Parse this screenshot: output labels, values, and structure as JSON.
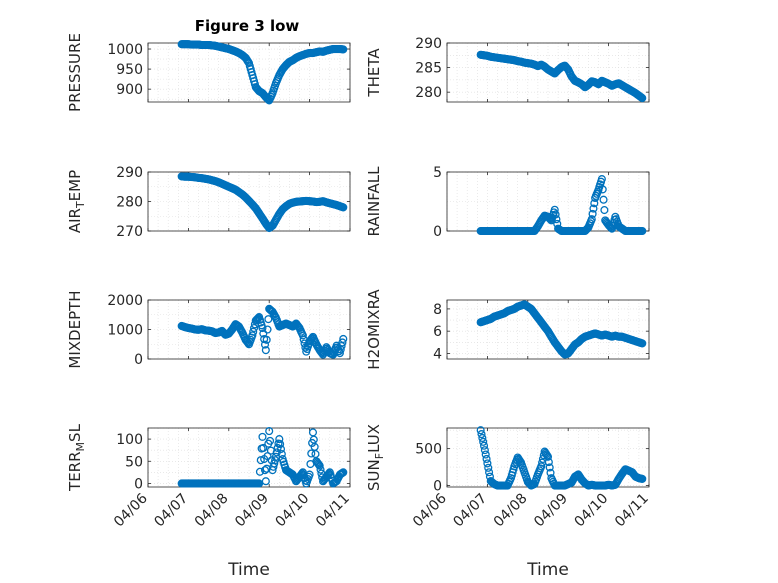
{
  "figure_title": "Figure 3 low",
  "colors": {
    "marker": "#0072BD",
    "axis": "#262626",
    "grid": "#dcdcdc",
    "frame": "#ffffff"
  },
  "chart_data": [
    {
      "type": "scatter",
      "ylabel": "PRESSURE",
      "ylabel_sub": null,
      "ylim": [
        868,
        1015
      ],
      "yticks": [
        900,
        950,
        1000
      ],
      "xlim": [
        "04/06 20:00",
        "04/10 20:00"
      ],
      "xticks": [],
      "x": [
        "04/06 20:00",
        "04/06 22:00",
        "04/07 00:00",
        "04/07 02:00",
        "04/07 04:00",
        "04/07 06:00",
        "04/07 08:00",
        "04/07 10:00",
        "04/07 12:00",
        "04/07 14:00",
        "04/07 16:00",
        "04/07 18:00",
        "04/07 20:00",
        "04/07 22:00",
        "04/08 00:00",
        "04/08 02:00",
        "04/08 04:00",
        "04/08 06:00",
        "04/08 08:00",
        "04/08 10:00",
        "04/08 12:00",
        "04/08 14:00",
        "04/08 16:00",
        "04/08 18:00",
        "04/08 20:00",
        "04/08 22:00",
        "04/09 00:00",
        "04/09 02:00",
        "04/09 04:00",
        "04/09 06:00",
        "04/09 08:00",
        "04/09 10:00",
        "04/09 12:00",
        "04/09 14:00",
        "04/09 16:00",
        "04/09 18:00",
        "04/09 20:00",
        "04/09 22:00",
        "04/10 00:00",
        "04/10 02:00",
        "04/10 04:00",
        "04/10 06:00",
        "04/10 08:00",
        "04/10 10:00",
        "04/10 12:00",
        "04/10 14:00",
        "04/10 16:00",
        "04/10 18:00",
        "04/10 20:00"
      ],
      "y": [
        1012,
        1012,
        1012,
        1011,
        1011,
        1011,
        1010,
        1010,
        1010,
        1009,
        1008,
        1006,
        1004,
        1002,
        1000,
        997,
        994,
        990,
        985,
        978,
        965,
        935,
        905,
        895,
        890,
        880,
        872,
        890,
        915,
        935,
        950,
        960,
        968,
        972,
        978,
        982,
        985,
        988,
        990,
        990,
        992,
        994,
        993,
        996,
        998,
        1000,
        1000,
        1000,
        999
      ]
    },
    {
      "type": "scatter",
      "ylabel": "THETA",
      "ylabel_sub": null,
      "ylim": [
        278,
        290
      ],
      "yticks": [
        280,
        285,
        290
      ],
      "xlim": [
        "04/06 20:00",
        "04/10 20:00"
      ],
      "xticks": [],
      "x": [
        "04/06 20:00",
        "04/06 22:00",
        "04/07 00:00",
        "04/07 02:00",
        "04/07 04:00",
        "04/07 06:00",
        "04/07 08:00",
        "04/07 10:00",
        "04/07 12:00",
        "04/07 14:00",
        "04/07 16:00",
        "04/07 18:00",
        "04/07 20:00",
        "04/07 22:00",
        "04/08 00:00",
        "04/08 02:00",
        "04/08 04:00",
        "04/08 06:00",
        "04/08 08:00",
        "04/08 10:00",
        "04/08 12:00",
        "04/08 14:00",
        "04/08 16:00",
        "04/08 18:00",
        "04/08 20:00",
        "04/08 22:00",
        "04/09 00:00",
        "04/09 02:00",
        "04/09 04:00",
        "04/09 06:00",
        "04/09 08:00",
        "04/09 10:00",
        "04/09 12:00",
        "04/09 14:00",
        "04/09 16:00",
        "04/09 18:00",
        "04/09 20:00",
        "04/09 22:00",
        "04/10 00:00",
        "04/10 02:00",
        "04/10 04:00",
        "04/10 06:00",
        "04/10 08:00",
        "04/10 10:00",
        "04/10 12:00",
        "04/10 14:00",
        "04/10 16:00",
        "04/10 18:00",
        "04/10 20:00"
      ],
      "y": [
        287.6,
        287.5,
        287.4,
        287.2,
        287.1,
        287.0,
        286.9,
        286.8,
        286.7,
        286.6,
        286.5,
        286.3,
        286.2,
        286.0,
        285.9,
        285.8,
        285.6,
        285.3,
        285.6,
        285.2,
        284.6,
        284.2,
        283.8,
        284.5,
        285.1,
        285.4,
        284.6,
        283.2,
        282.3,
        282.0,
        281.6,
        281.0,
        281.5,
        282.2,
        282.0,
        281.6,
        282.3,
        282.0,
        281.7,
        281.3,
        281.6,
        281.8,
        281.4,
        281.0,
        280.6,
        280.2,
        279.8,
        279.3,
        278.8
      ]
    },
    {
      "type": "scatter",
      "ylabel": "AIR",
      "ylabel_sub": "T",
      "ylabel_rest": "EMP",
      "ylim": [
        270,
        290
      ],
      "yticks": [
        270,
        280,
        290
      ],
      "xlim": [
        "04/06 20:00",
        "04/10 20:00"
      ],
      "xticks": [],
      "x": [
        "04/06 20:00",
        "04/06 22:00",
        "04/07 00:00",
        "04/07 02:00",
        "04/07 04:00",
        "04/07 06:00",
        "04/07 08:00",
        "04/07 10:00",
        "04/07 12:00",
        "04/07 14:00",
        "04/07 16:00",
        "04/07 18:00",
        "04/07 20:00",
        "04/07 22:00",
        "04/08 00:00",
        "04/08 02:00",
        "04/08 04:00",
        "04/08 06:00",
        "04/08 08:00",
        "04/08 10:00",
        "04/08 12:00",
        "04/08 14:00",
        "04/08 16:00",
        "04/08 18:00",
        "04/08 20:00",
        "04/08 22:00",
        "04/09 00:00",
        "04/09 02:00",
        "04/09 04:00",
        "04/09 06:00",
        "04/09 08:00",
        "04/09 10:00",
        "04/09 12:00",
        "04/09 14:00",
        "04/09 16:00",
        "04/09 18:00",
        "04/09 20:00",
        "04/09 22:00",
        "04/10 00:00",
        "04/10 02:00",
        "04/10 04:00",
        "04/10 06:00",
        "04/10 08:00",
        "04/10 10:00",
        "04/10 12:00",
        "04/10 14:00",
        "04/10 16:00",
        "04/10 18:00",
        "04/10 20:00"
      ],
      "y": [
        288.5,
        288.4,
        288.4,
        288.3,
        288.2,
        288.0,
        287.9,
        287.7,
        287.5,
        287.2,
        286.9,
        286.5,
        286.0,
        285.5,
        285.0,
        284.5,
        284.0,
        283.2,
        282.4,
        281.4,
        280.2,
        279.0,
        277.7,
        276.0,
        274.3,
        272.5,
        271.0,
        271.8,
        273.8,
        275.8,
        277.4,
        278.4,
        279.2,
        279.6,
        279.9,
        280.0,
        280.1,
        280.2,
        280.1,
        280.0,
        279.8,
        279.9,
        280.1,
        279.7,
        279.4,
        279.1,
        278.8,
        278.4,
        278.0
      ]
    },
    {
      "type": "scatter",
      "ylabel": "RAINFALL",
      "ylabel_sub": null,
      "ylim": [
        0,
        5
      ],
      "yticks": [
        0,
        5
      ],
      "xlim": [
        "04/06 20:00",
        "04/10 20:00"
      ],
      "xticks": [],
      "x": [
        "04/06 20:00",
        "04/06 22:00",
        "04/07 00:00",
        "04/07 02:00",
        "04/07 04:00",
        "04/07 06:00",
        "04/07 08:00",
        "04/07 10:00",
        "04/07 12:00",
        "04/07 14:00",
        "04/07 16:00",
        "04/07 18:00",
        "04/07 20:00",
        "04/07 22:00",
        "04/08 00:00",
        "04/08 02:00",
        "04/08 04:00",
        "04/08 06:00",
        "04/08 08:00",
        "04/08 10:00",
        "04/08 12:00",
        "04/08 14:00",
        "04/08 16:00",
        "04/08 18:00",
        "04/08 20:00",
        "04/08 22:00",
        "04/09 00:00",
        "04/09 02:00",
        "04/09 04:00",
        "04/09 06:00",
        "04/09 08:00",
        "04/09 10:00",
        "04/09 12:00",
        "04/09 14:00",
        "04/09 16:00",
        "04/09 18:00",
        "04/09 20:00",
        "04/09 22:00",
        "04/10 00:00",
        "04/10 02:00",
        "04/10 04:00",
        "04/10 06:00",
        "04/10 08:00",
        "04/10 10:00",
        "04/10 12:00",
        "04/10 14:00",
        "04/10 16:00",
        "04/10 18:00",
        "04/10 20:00"
      ],
      "y": [
        0,
        0,
        0,
        0,
        0,
        0,
        0,
        0,
        0,
        0,
        0,
        0,
        0,
        0,
        0,
        0,
        0,
        0.4,
        0.9,
        1.3,
        1.2,
        0.9,
        1.8,
        0.2,
        0,
        0,
        0,
        0,
        0,
        0,
        0,
        0,
        0.3,
        1.0,
        2.8,
        3.5,
        4.4,
        0.9,
        0.5,
        0.2,
        1.2,
        0.4,
        0.2,
        0,
        0,
        0,
        0,
        0,
        0
      ]
    },
    {
      "type": "scatter",
      "ylabel": "MIXDEPTH",
      "ylabel_sub": null,
      "ylim": [
        0,
        2000
      ],
      "yticks": [
        0,
        1000,
        2000
      ],
      "xlim": [
        "04/06 20:00",
        "04/10 20:00"
      ],
      "xticks": [],
      "x": [
        "04/06 20:00",
        "04/06 22:00",
        "04/07 00:00",
        "04/07 02:00",
        "04/07 04:00",
        "04/07 06:00",
        "04/07 08:00",
        "04/07 10:00",
        "04/07 12:00",
        "04/07 14:00",
        "04/07 16:00",
        "04/07 18:00",
        "04/07 20:00",
        "04/07 22:00",
        "04/08 00:00",
        "04/08 02:00",
        "04/08 04:00",
        "04/08 06:00",
        "04/08 08:00",
        "04/08 10:00",
        "04/08 12:00",
        "04/08 14:00",
        "04/08 16:00",
        "04/08 18:00",
        "04/08 20:00",
        "04/08 22:00",
        "04/09 00:00",
        "04/09 02:00",
        "04/09 04:00",
        "04/09 06:00",
        "04/09 08:00",
        "04/09 10:00",
        "04/09 12:00",
        "04/09 14:00",
        "04/09 16:00",
        "04/09 18:00",
        "04/09 20:00",
        "04/09 22:00",
        "04/10 00:00",
        "04/10 02:00",
        "04/10 04:00",
        "04/10 06:00",
        "04/10 08:00",
        "04/10 10:00",
        "04/10 12:00",
        "04/10 14:00",
        "04/10 16:00",
        "04/10 18:00",
        "04/10 20:00"
      ],
      "y": [
        1120,
        1080,
        1050,
        1030,
        1000,
        990,
        1010,
        970,
        960,
        940,
        880,
        900,
        950,
        820,
        860,
        1000,
        1180,
        1100,
        900,
        650,
        500,
        800,
        1300,
        1420,
        1050,
        300,
        1700,
        1600,
        1400,
        1100,
        1150,
        1200,
        1150,
        1100,
        1200,
        1050,
        800,
        250,
        600,
        750,
        500,
        300,
        150,
        400,
        200,
        150,
        450,
        200,
        680
      ]
    },
    {
      "type": "scatter",
      "ylabel": "H2OMIXRA",
      "ylabel_sub": null,
      "ylim": [
        3.5,
        8.8
      ],
      "yticks": [
        4,
        6,
        8
      ],
      "xlim": [
        "04/06 20:00",
        "04/10 20:00"
      ],
      "xticks": [],
      "x": [
        "04/06 20:00",
        "04/06 22:00",
        "04/07 00:00",
        "04/07 02:00",
        "04/07 04:00",
        "04/07 06:00",
        "04/07 08:00",
        "04/07 10:00",
        "04/07 12:00",
        "04/07 14:00",
        "04/07 16:00",
        "04/07 18:00",
        "04/07 20:00",
        "04/07 22:00",
        "04/08 00:00",
        "04/08 02:00",
        "04/08 04:00",
        "04/08 06:00",
        "04/08 08:00",
        "04/08 10:00",
        "04/08 12:00",
        "04/08 14:00",
        "04/08 16:00",
        "04/08 18:00",
        "04/08 20:00",
        "04/08 22:00",
        "04/09 00:00",
        "04/09 02:00",
        "04/09 04:00",
        "04/09 06:00",
        "04/09 08:00",
        "04/09 10:00",
        "04/09 12:00",
        "04/09 14:00",
        "04/09 16:00",
        "04/09 18:00",
        "04/09 20:00",
        "04/09 22:00",
        "04/10 00:00",
        "04/10 02:00",
        "04/10 04:00",
        "04/10 06:00",
        "04/10 08:00",
        "04/10 10:00",
        "04/10 12:00",
        "04/10 14:00",
        "04/10 16:00",
        "04/10 18:00",
        "04/10 20:00"
      ],
      "y": [
        6.8,
        6.9,
        7.0,
        7.1,
        7.3,
        7.4,
        7.5,
        7.6,
        7.8,
        7.9,
        8.0,
        8.2,
        8.3,
        8.4,
        8.2,
        8.0,
        7.6,
        7.2,
        6.8,
        6.4,
        6.0,
        5.5,
        5.0,
        4.6,
        4.2,
        3.9,
        4.0,
        4.4,
        4.8,
        5.0,
        5.3,
        5.5,
        5.6,
        5.7,
        5.8,
        5.7,
        5.6,
        5.7,
        5.6,
        5.5,
        5.6,
        5.5,
        5.5,
        5.4,
        5.3,
        5.2,
        5.1,
        5.0,
        4.9
      ]
    },
    {
      "type": "scatter",
      "ylabel": "TERR",
      "ylabel_sub": "M",
      "ylabel_rest": "SL",
      "ylim": [
        -8,
        125
      ],
      "yticks": [
        0,
        50,
        100
      ],
      "xlim": [
        "04/06 20:00",
        "04/10 20:00"
      ],
      "xticks": [
        "04/06",
        "04/07",
        "04/08",
        "04/09",
        "04/10",
        "04/11"
      ],
      "xlabel": "Time",
      "x": [
        "04/06 20:00",
        "04/06 22:00",
        "04/07 00:00",
        "04/07 02:00",
        "04/07 04:00",
        "04/07 06:00",
        "04/07 08:00",
        "04/07 10:00",
        "04/07 12:00",
        "04/07 14:00",
        "04/07 16:00",
        "04/07 18:00",
        "04/07 20:00",
        "04/07 22:00",
        "04/08 00:00",
        "04/08 02:00",
        "04/08 04:00",
        "04/08 06:00",
        "04/08 08:00",
        "04/08 10:00",
        "04/08 12:00",
        "04/08 14:00",
        "04/08 16:00",
        "04/08 18:00",
        "04/08 20:00",
        "04/08 22:00",
        "04/09 00:00",
        "04/09 02:00",
        "04/09 04:00",
        "04/09 06:00",
        "04/09 08:00",
        "04/09 10:00",
        "04/09 12:00",
        "04/09 14:00",
        "04/09 16:00",
        "04/09 18:00",
        "04/09 20:00",
        "04/09 22:00",
        "04/10 00:00",
        "04/10 02:00",
        "04/10 04:00",
        "04/10 06:00",
        "04/10 08:00",
        "04/10 10:00",
        "04/10 12:00",
        "04/10 14:00",
        "04/10 16:00",
        "04/10 18:00",
        "04/10 20:00"
      ],
      "y": [
        0,
        0,
        0,
        0,
        0,
        0,
        0,
        0,
        0,
        0,
        0,
        0,
        0,
        0,
        0,
        0,
        0,
        0,
        0,
        0,
        0,
        0,
        0,
        0,
        105,
        5,
        118,
        30,
        60,
        100,
        55,
        30,
        25,
        20,
        5,
        15,
        25,
        0,
        20,
        115,
        50,
        40,
        5,
        15,
        25,
        0,
        5,
        20,
        25
      ]
    },
    {
      "type": "scatter",
      "ylabel": "SUN",
      "ylabel_sub": "F",
      "ylabel_rest": "LUX",
      "ylim": [
        -20,
        780
      ],
      "yticks": [
        0,
        500
      ],
      "xlim": [
        "04/06 20:00",
        "04/10 20:00"
      ],
      "xticks": [
        "04/06",
        "04/07",
        "04/08",
        "04/09",
        "04/10",
        "04/11"
      ],
      "xlabel": "Time",
      "x": [
        "04/06 20:00",
        "04/06 22:00",
        "04/07 00:00",
        "04/07 02:00",
        "04/07 04:00",
        "04/07 06:00",
        "04/07 08:00",
        "04/07 10:00",
        "04/07 12:00",
        "04/07 14:00",
        "04/07 16:00",
        "04/07 18:00",
        "04/07 20:00",
        "04/07 22:00",
        "04/08 00:00",
        "04/08 02:00",
        "04/08 04:00",
        "04/08 06:00",
        "04/08 08:00",
        "04/08 10:00",
        "04/08 12:00",
        "04/08 14:00",
        "04/08 16:00",
        "04/08 18:00",
        "04/08 20:00",
        "04/08 22:00",
        "04/09 00:00",
        "04/09 02:00",
        "04/09 04:00",
        "04/09 06:00",
        "04/09 08:00",
        "04/09 10:00",
        "04/09 12:00",
        "04/09 14:00",
        "04/09 16:00",
        "04/09 18:00",
        "04/09 20:00",
        "04/09 22:00",
        "04/10 00:00",
        "04/10 02:00",
        "04/10 04:00",
        "04/10 06:00",
        "04/10 08:00",
        "04/10 10:00",
        "04/10 12:00",
        "04/10 14:00",
        "04/10 16:00",
        "04/10 18:00",
        "04/10 20:00"
      ],
      "y": [
        750,
        540,
        300,
        60,
        20,
        0,
        0,
        0,
        0,
        100,
        260,
        380,
        310,
        180,
        50,
        0,
        20,
        150,
        260,
        460,
        390,
        100,
        0,
        0,
        0,
        0,
        20,
        40,
        120,
        150,
        80,
        30,
        0,
        10,
        0,
        0,
        0,
        0,
        10,
        0,
        10,
        90,
        160,
        220,
        200,
        180,
        120,
        100,
        90
      ]
    }
  ]
}
